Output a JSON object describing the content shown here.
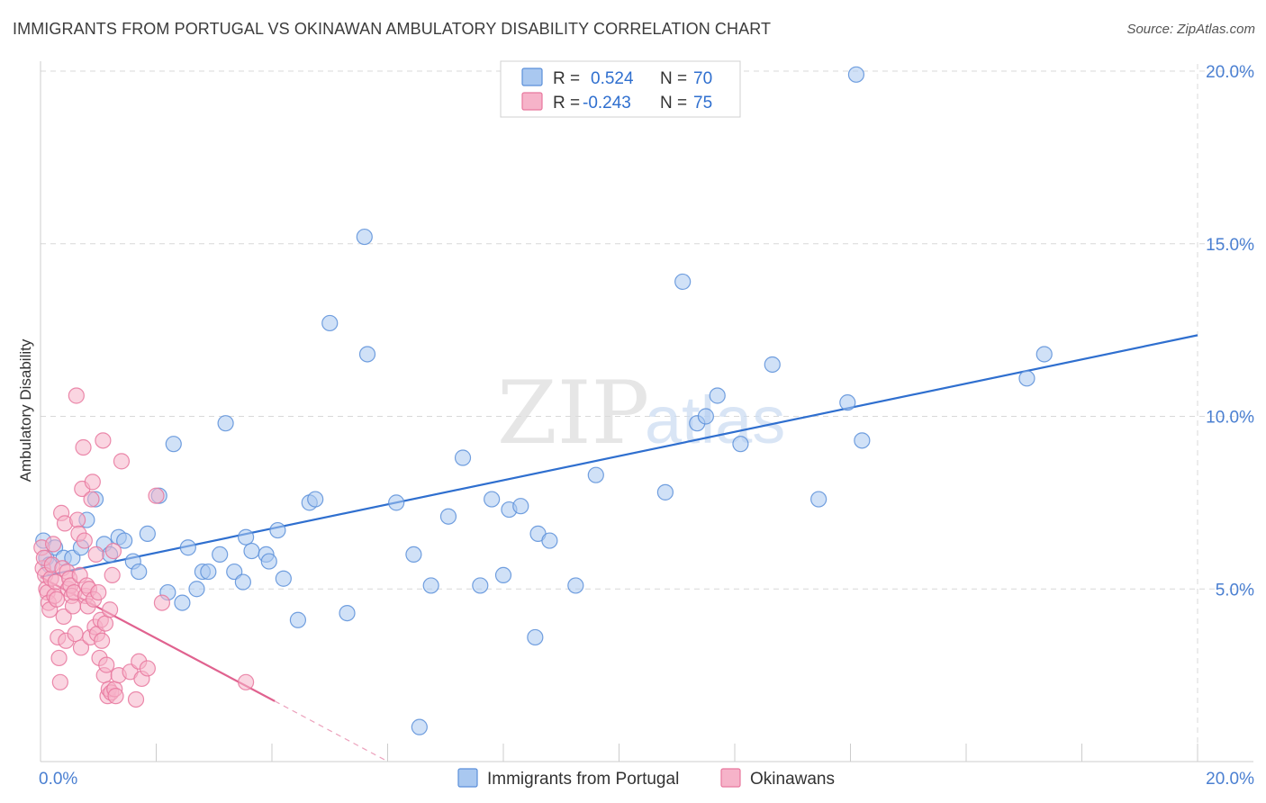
{
  "title": "IMMIGRANTS FROM PORTUGAL VS OKINAWAN AMBULATORY DISABILITY CORRELATION CHART",
  "source": "Source: ZipAtlas.com",
  "watermark": {
    "zip": "ZIP",
    "atlas": "atlas"
  },
  "legend_top": {
    "r_label": "R =",
    "n_label": "N =",
    "rows": [
      {
        "series": "Immigrants from Portugal",
        "r": "0.524",
        "n": "70"
      },
      {
        "series": "Okinawans",
        "r": "-0.243",
        "n": "75"
      }
    ]
  },
  "colors": {
    "blue_fill": "#a9c8f0",
    "blue_stroke": "#5b8fd9",
    "blue_line": "#2f6fcf",
    "pink_fill": "#f6b3c9",
    "pink_stroke": "#e8779e",
    "pink_line": "#e0628f",
    "grid": "#d8d8d8",
    "tick_text": "#4a7fd1"
  },
  "chart_data": {
    "type": "scatter",
    "title": "IMMIGRANTS FROM PORTUGAL VS OKINAWAN AMBULATORY DISABILITY CORRELATION CHART",
    "xlabel": "",
    "ylabel": "Ambulatory Disability",
    "xlim": [
      0,
      20
    ],
    "ylim": [
      0,
      20
    ],
    "x_tick_labels": [
      {
        "value": 0,
        "label": "0.0%"
      },
      {
        "value": 20,
        "label": "20.0%"
      }
    ],
    "y_tick_labels": [
      {
        "value": 5,
        "label": "5.0%"
      },
      {
        "value": 10,
        "label": "10.0%"
      },
      {
        "value": 15,
        "label": "15.0%"
      },
      {
        "value": 20,
        "label": "20.0%"
      }
    ],
    "grid": true,
    "legend_position": "bottom-center",
    "series": [
      {
        "name": "Immigrants from Portugal",
        "color": "#5b8fd9",
        "trend": {
          "x": [
            0,
            20
          ],
          "y": [
            5.35,
            12.35
          ]
        },
        "points": [
          [
            0.05,
            6.4
          ],
          [
            0.1,
            5.9
          ],
          [
            0.15,
            5.7
          ],
          [
            0.25,
            6.2
          ],
          [
            0.4,
            5.9
          ],
          [
            0.55,
            5.9
          ],
          [
            0.7,
            6.2
          ],
          [
            0.8,
            7.0
          ],
          [
            0.95,
            7.6
          ],
          [
            1.1,
            6.3
          ],
          [
            1.2,
            6.0
          ],
          [
            1.35,
            6.5
          ],
          [
            1.45,
            6.4
          ],
          [
            1.6,
            5.8
          ],
          [
            1.7,
            5.5
          ],
          [
            1.85,
            6.6
          ],
          [
            2.05,
            7.7
          ],
          [
            2.2,
            4.9
          ],
          [
            2.3,
            9.2
          ],
          [
            2.45,
            4.6
          ],
          [
            2.55,
            6.2
          ],
          [
            2.7,
            5.0
          ],
          [
            2.8,
            5.5
          ],
          [
            2.9,
            5.5
          ],
          [
            3.1,
            6.0
          ],
          [
            3.2,
            9.8
          ],
          [
            3.35,
            5.5
          ],
          [
            3.5,
            5.2
          ],
          [
            3.55,
            6.5
          ],
          [
            3.65,
            6.1
          ],
          [
            3.9,
            6.0
          ],
          [
            3.95,
            5.8
          ],
          [
            4.1,
            6.7
          ],
          [
            4.2,
            5.3
          ],
          [
            4.45,
            4.1
          ],
          [
            4.65,
            7.5
          ],
          [
            4.75,
            7.6
          ],
          [
            5.0,
            12.7
          ],
          [
            5.3,
            4.3
          ],
          [
            5.6,
            15.2
          ],
          [
            5.65,
            11.8
          ],
          [
            6.15,
            7.5
          ],
          [
            6.45,
            6.0
          ],
          [
            6.55,
            1.0
          ],
          [
            6.75,
            5.1
          ],
          [
            7.05,
            7.1
          ],
          [
            7.3,
            8.8
          ],
          [
            7.6,
            5.1
          ],
          [
            7.8,
            7.6
          ],
          [
            8.0,
            5.4
          ],
          [
            8.1,
            7.3
          ],
          [
            8.3,
            7.4
          ],
          [
            8.55,
            3.6
          ],
          [
            8.6,
            6.6
          ],
          [
            8.8,
            6.4
          ],
          [
            9.25,
            5.1
          ],
          [
            9.6,
            8.3
          ],
          [
            10.8,
            7.8
          ],
          [
            11.1,
            13.9
          ],
          [
            11.35,
            9.8
          ],
          [
            11.5,
            10.0
          ],
          [
            11.7,
            10.6
          ],
          [
            12.1,
            9.2
          ],
          [
            12.65,
            11.5
          ],
          [
            13.45,
            7.6
          ],
          [
            13.95,
            10.4
          ],
          [
            14.2,
            9.3
          ],
          [
            14.1,
            19.9
          ],
          [
            17.05,
            11.1
          ],
          [
            17.35,
            11.8
          ]
        ]
      },
      {
        "name": "Okinawans",
        "color": "#e8779e",
        "trend": {
          "x": [
            0,
            4.05
          ],
          "y": [
            5.35,
            1.75
          ]
        },
        "trend_dashed": {
          "x": [
            4.05,
            5.95
          ],
          "y": [
            1.75,
            0.05
          ]
        },
        "points": [
          [
            0.02,
            6.2
          ],
          [
            0.04,
            5.6
          ],
          [
            0.06,
            5.9
          ],
          [
            0.08,
            5.4
          ],
          [
            0.1,
            5.0
          ],
          [
            0.12,
            4.9
          ],
          [
            0.14,
            4.6
          ],
          [
            0.16,
            4.4
          ],
          [
            0.18,
            5.3
          ],
          [
            0.2,
            5.7
          ],
          [
            0.22,
            6.3
          ],
          [
            0.24,
            4.8
          ],
          [
            0.26,
            5.2
          ],
          [
            0.28,
            4.7
          ],
          [
            0.3,
            3.6
          ],
          [
            0.32,
            3.0
          ],
          [
            0.34,
            2.3
          ],
          [
            0.36,
            7.2
          ],
          [
            0.38,
            5.6
          ],
          [
            0.4,
            4.2
          ],
          [
            0.42,
            6.9
          ],
          [
            0.44,
            3.5
          ],
          [
            0.46,
            5.5
          ],
          [
            0.48,
            5.0
          ],
          [
            0.5,
            5.3
          ],
          [
            0.52,
            5.1
          ],
          [
            0.54,
            4.8
          ],
          [
            0.56,
            4.5
          ],
          [
            0.58,
            4.9
          ],
          [
            0.6,
            3.7
          ],
          [
            0.62,
            10.6
          ],
          [
            0.64,
            7.0
          ],
          [
            0.66,
            6.6
          ],
          [
            0.68,
            5.4
          ],
          [
            0.7,
            3.3
          ],
          [
            0.72,
            7.9
          ],
          [
            0.74,
            9.1
          ],
          [
            0.76,
            6.4
          ],
          [
            0.78,
            4.8
          ],
          [
            0.8,
            5.1
          ],
          [
            0.82,
            4.5
          ],
          [
            0.84,
            5.0
          ],
          [
            0.86,
            3.6
          ],
          [
            0.88,
            7.6
          ],
          [
            0.9,
            8.1
          ],
          [
            0.92,
            4.7
          ],
          [
            0.94,
            3.9
          ],
          [
            0.96,
            6.0
          ],
          [
            0.98,
            3.7
          ],
          [
            1.0,
            4.9
          ],
          [
            1.02,
            3.0
          ],
          [
            1.04,
            4.1
          ],
          [
            1.06,
            3.5
          ],
          [
            1.08,
            9.3
          ],
          [
            1.1,
            2.5
          ],
          [
            1.12,
            4.0
          ],
          [
            1.14,
            2.8
          ],
          [
            1.16,
            1.9
          ],
          [
            1.18,
            2.1
          ],
          [
            1.2,
            4.4
          ],
          [
            1.22,
            2.0
          ],
          [
            1.24,
            5.4
          ],
          [
            1.26,
            6.1
          ],
          [
            1.28,
            2.1
          ],
          [
            1.3,
            1.9
          ],
          [
            1.35,
            2.5
          ],
          [
            1.4,
            8.7
          ],
          [
            1.55,
            2.6
          ],
          [
            1.65,
            1.8
          ],
          [
            1.7,
            2.9
          ],
          [
            1.75,
            2.4
          ],
          [
            1.85,
            2.7
          ],
          [
            2.0,
            7.7
          ],
          [
            2.1,
            4.6
          ],
          [
            3.55,
            2.3
          ]
        ]
      }
    ]
  }
}
